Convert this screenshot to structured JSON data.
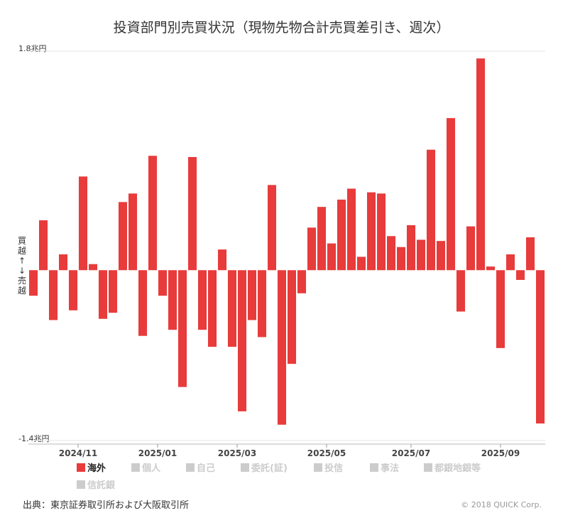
{
  "chart_data": {
    "type": "bar",
    "title": "投資部門別売買状況（現物先物合計売買差引き、週次）",
    "unit": "兆円",
    "ylim": [
      -1.4,
      1.8
    ],
    "ymax_label": "1.8兆円",
    "ymin_label": "-1.4兆円",
    "side_label": [
      "買",
      "越",
      "↑",
      "↓",
      "売",
      "越"
    ],
    "x_tick_labels": [
      "2024/11",
      "2025/01",
      "2025/03",
      "2025/05",
      "2025/07",
      "2025/09"
    ],
    "x_tick_positions": [
      5,
      13,
      21,
      30,
      38.5,
      47.5
    ],
    "grid": false,
    "series": [
      {
        "name": "海外",
        "color": "#e83b3b",
        "values": [
          -0.21,
          0.41,
          -0.41,
          0.13,
          -0.33,
          0.77,
          0.05,
          -0.4,
          -0.35,
          0.56,
          0.63,
          -0.54,
          0.94,
          -0.21,
          -0.49,
          -0.96,
          0.93,
          -0.49,
          -0.63,
          0.17,
          -0.63,
          -1.16,
          -0.41,
          -0.55,
          0.7,
          -1.27,
          -0.77,
          -0.19,
          0.35,
          0.52,
          0.22,
          0.58,
          0.67,
          0.11,
          0.64,
          0.63,
          0.28,
          0.19,
          0.37,
          0.25,
          0.99,
          0.24,
          1.25,
          -0.34,
          0.36,
          1.74,
          0.03,
          -0.64,
          0.13,
          -0.08,
          0.27,
          -1.26
        ]
      },
      {
        "name": "個人",
        "color": "#cccccc",
        "values": []
      },
      {
        "name": "自己",
        "color": "#cccccc",
        "values": []
      },
      {
        "name": "委託(証)",
        "color": "#cccccc",
        "values": []
      },
      {
        "name": "投信",
        "color": "#cccccc",
        "values": []
      },
      {
        "name": "事法",
        "color": "#cccccc",
        "values": []
      },
      {
        "name": "都銀地銀等",
        "color": "#cccccc",
        "values": []
      },
      {
        "name": "信託銀",
        "color": "#cccccc",
        "values": []
      }
    ],
    "legend_position": "bottom"
  },
  "footer": {
    "source": "出典：東京証券取引所および大阪取引所",
    "copyright": "© 2018 QUICK Corp."
  }
}
